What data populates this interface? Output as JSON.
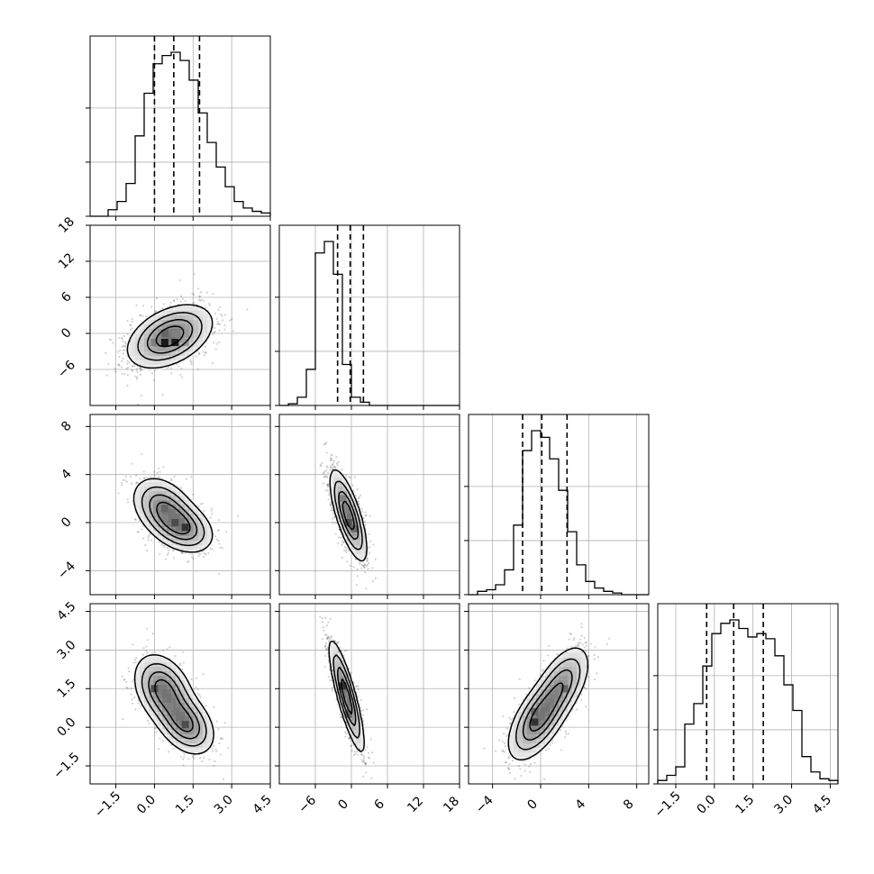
{
  "chart_data": {
    "type": "corner",
    "parameters": [
      {
        "range": [
          -2.5,
          4.5
        ],
        "ticks": [
          -1.5,
          0.0,
          1.5,
          3.0,
          4.5
        ],
        "tick_labels": [
          "−1.5",
          "0.0",
          "1.5",
          "3.0",
          "4.5"
        ],
        "quantiles": [
          0.0,
          0.75,
          1.75
        ]
      },
      {
        "range": [
          -12,
          18
        ],
        "ticks": [
          -6,
          0,
          6,
          12,
          18
        ],
        "tick_labels": [
          "−6",
          "0",
          "6",
          "12",
          "18"
        ],
        "quantiles": [
          -2.3,
          -0.2,
          2.0
        ]
      },
      {
        "range": [
          -6,
          9
        ],
        "ticks": [
          -4,
          0,
          4,
          8
        ],
        "tick_labels": [
          "−4",
          "0",
          "4",
          "8"
        ],
        "quantiles": [
          -1.5,
          0.1,
          2.2
        ]
      },
      {
        "range": [
          -2.2,
          4.8
        ],
        "ticks": [
          -1.5,
          0.0,
          1.5,
          3.0,
          4.5
        ],
        "tick_labels": [
          "−1.5",
          "0.0",
          "1.5",
          "3.0",
          "4.5"
        ],
        "quantiles": [
          -0.3,
          0.75,
          1.9
        ]
      }
    ],
    "histograms": [
      {
        "edges_start": -2.5,
        "bin_width": 0.35,
        "counts": [
          0,
          0,
          0.04,
          0.09,
          0.2,
          0.49,
          0.75,
          0.93,
          0.98,
          1.0,
          0.95,
          0.83,
          0.63,
          0.45,
          0.3,
          0.18,
          0.09,
          0.05,
          0.03,
          0.02,
          0.0
        ],
        "max_label_note": ""
      },
      {
        "edges_start": -12,
        "bin_width": 1.5,
        "counts": [
          0,
          0.01,
          0.05,
          0.22,
          0.93,
          1.0,
          0.8,
          0.25,
          0.05,
          0.02,
          0,
          0,
          0,
          0,
          0,
          0,
          0,
          0,
          0,
          0
        ]
      },
      {
        "edges_start": -6,
        "bin_width": 0.75,
        "counts": [
          0,
          0.02,
          0.03,
          0.06,
          0.15,
          0.42,
          0.87,
          0.99,
          0.95,
          0.82,
          0.63,
          0.38,
          0.18,
          0.08,
          0.04,
          0.02,
          0.01,
          0,
          0,
          0
        ]
      },
      {
        "edges_start": -2.2,
        "bin_width": 0.35,
        "counts": [
          0.02,
          0.05,
          0.1,
          0.35,
          0.47,
          0.69,
          0.88,
          0.94,
          0.96,
          0.91,
          0.86,
          0.88,
          0.85,
          0.75,
          0.58,
          0.43,
          0.16,
          0.07,
          0.03,
          0.02,
          0
        ]
      }
    ],
    "pairs": [
      {
        "row": 1,
        "col": 0,
        "cov": [
          [
            0.64,
            0.85
          ],
          [
            0.85,
            6.5
          ]
        ],
        "clusters": [
          {
            "center": [
              0.6,
              -0.5
            ],
            "weight": 1.0,
            "cov": [
              [
                0.64,
                0.85
              ],
              [
                0.85,
                6.5
              ]
            ]
          }
        ],
        "cells": [
          [
            0.4,
            -1.5,
            0.9
          ],
          [
            0.8,
            -1.5,
            0.9
          ],
          [
            0.4,
            0.0,
            0.6
          ],
          [
            0.8,
            0.0,
            0.5
          ],
          [
            1.2,
            0.0,
            0.4
          ],
          [
            0.0,
            -1.5,
            0.5
          ],
          [
            1.2,
            -1.5,
            0.4
          ]
        ]
      },
      {
        "row": 2,
        "col": 0,
        "clusters": [
          {
            "center": [
              0.35,
              1.2
            ],
            "weight": 0.55,
            "cov": [
              [
                0.35,
                -0.25
              ],
              [
                -0.25,
                1.6
              ]
            ]
          },
          {
            "center": [
              1.1,
              -0.4
            ],
            "weight": 0.45,
            "cov": [
              [
                0.35,
                -0.2
              ],
              [
                -0.2,
                1.1
              ]
            ]
          }
        ],
        "cells": [
          [
            0.4,
            1.2,
            0.6
          ],
          [
            0.8,
            0.0,
            0.7
          ],
          [
            1.2,
            -0.4,
            0.8
          ],
          [
            0.4,
            0.4,
            0.5
          ]
        ]
      },
      {
        "row": 2,
        "col": 1,
        "clusters": [
          {
            "center": [
              -0.5,
              0.6
            ],
            "weight": 1.0,
            "cov": [
              [
                2.2,
                -2.0
              ],
              [
                -2.0,
                3.4
              ]
            ]
          }
        ],
        "cells": [
          [
            -1.5,
            2.0,
            0.5
          ],
          [
            -0.5,
            0.0,
            0.7
          ],
          [
            0.5,
            -0.5,
            0.6
          ]
        ]
      },
      {
        "row": 3,
        "col": 0,
        "clusters": [
          {
            "center": [
              0.35,
              1.45
            ],
            "weight": 0.55,
            "cov": [
              [
                0.3,
                -0.12
              ],
              [
                -0.12,
                0.45
              ]
            ]
          },
          {
            "center": [
              1.2,
              0.15
            ],
            "weight": 0.45,
            "cov": [
              [
                0.3,
                -0.12
              ],
              [
                -0.12,
                0.35
              ]
            ]
          }
        ],
        "cells": [
          [
            0.0,
            1.5,
            0.7
          ],
          [
            1.2,
            0.1,
            0.7
          ],
          [
            0.6,
            0.8,
            0.5
          ]
        ]
      },
      {
        "row": 3,
        "col": 1,
        "clusters": [
          {
            "center": [
              -0.8,
              1.2
            ],
            "weight": 1.0,
            "cov": [
              [
                2.0,
                -1.25
              ],
              [
                -1.25,
                1.1
              ]
            ]
          }
        ],
        "cells": [
          [
            -1.5,
            1.6,
            0.8
          ],
          [
            -0.5,
            0.5,
            0.6
          ]
        ]
      },
      {
        "row": 3,
        "col": 2,
        "clusters": [
          {
            "center": [
              -0.2,
              0.3
            ],
            "weight": 0.6,
            "cov": [
              [
                1.5,
                0.55
              ],
              [
                0.55,
                0.6
              ]
            ]
          },
          {
            "center": [
              1.8,
              1.7
            ],
            "weight": 0.4,
            "cov": [
              [
                1.3,
                0.45
              ],
              [
                0.45,
                0.55
              ]
            ]
          }
        ],
        "cells": [
          [
            -0.5,
            0.2,
            0.8
          ],
          [
            -0.5,
            0.6,
            0.6
          ],
          [
            2.0,
            1.5,
            0.6
          ]
        ]
      }
    ],
    "y_tick_params": [
      1,
      2,
      3
    ],
    "x_tick_params": [
      0,
      1,
      2,
      3
    ]
  }
}
